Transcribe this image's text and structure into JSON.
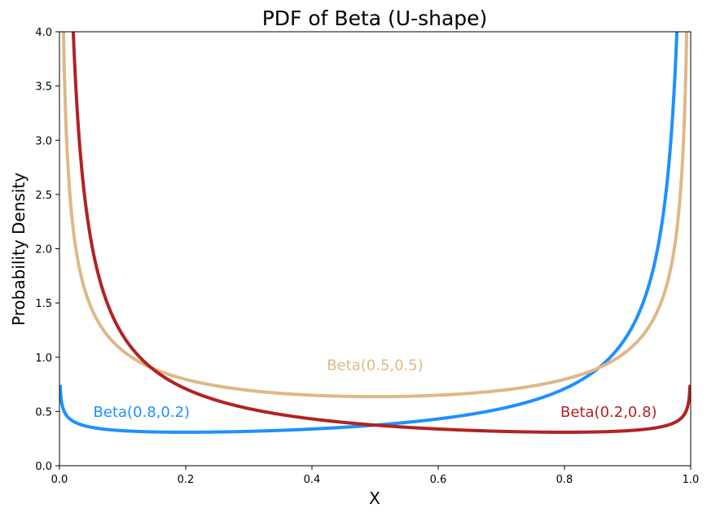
{
  "chart_data": {
    "type": "line",
    "title": "PDF of Beta (U-shape)",
    "xlabel": "X",
    "ylabel": "Probability Density",
    "xlim": [
      0.0,
      1.0
    ],
    "ylim": [
      0.0,
      4.0
    ],
    "x_ticks": [
      "0.0",
      "0.2",
      "0.4",
      "0.6",
      "0.8",
      "1.0"
    ],
    "y_ticks": [
      "0.0",
      "0.5",
      "1.0",
      "1.5",
      "2.0",
      "2.5",
      "3.0",
      "3.5",
      "4.0"
    ],
    "grid": false,
    "legend": "none",
    "series": [
      {
        "name": "Beta(0.8,0.2)",
        "alpha": 0.8,
        "beta": 0.2,
        "color": "#1e90ff",
        "label": {
          "x": 0.13,
          "y": 0.45
        }
      },
      {
        "name": "Beta(0.5,0.5)",
        "alpha": 0.5,
        "beta": 0.5,
        "color": "#deb887",
        "label": {
          "x": 0.5,
          "y": 0.88
        }
      },
      {
        "name": "Beta(0.2,0.8)",
        "alpha": 0.2,
        "beta": 0.8,
        "color": "#b22222",
        "label": {
          "x": 0.87,
          "y": 0.45
        }
      }
    ]
  }
}
